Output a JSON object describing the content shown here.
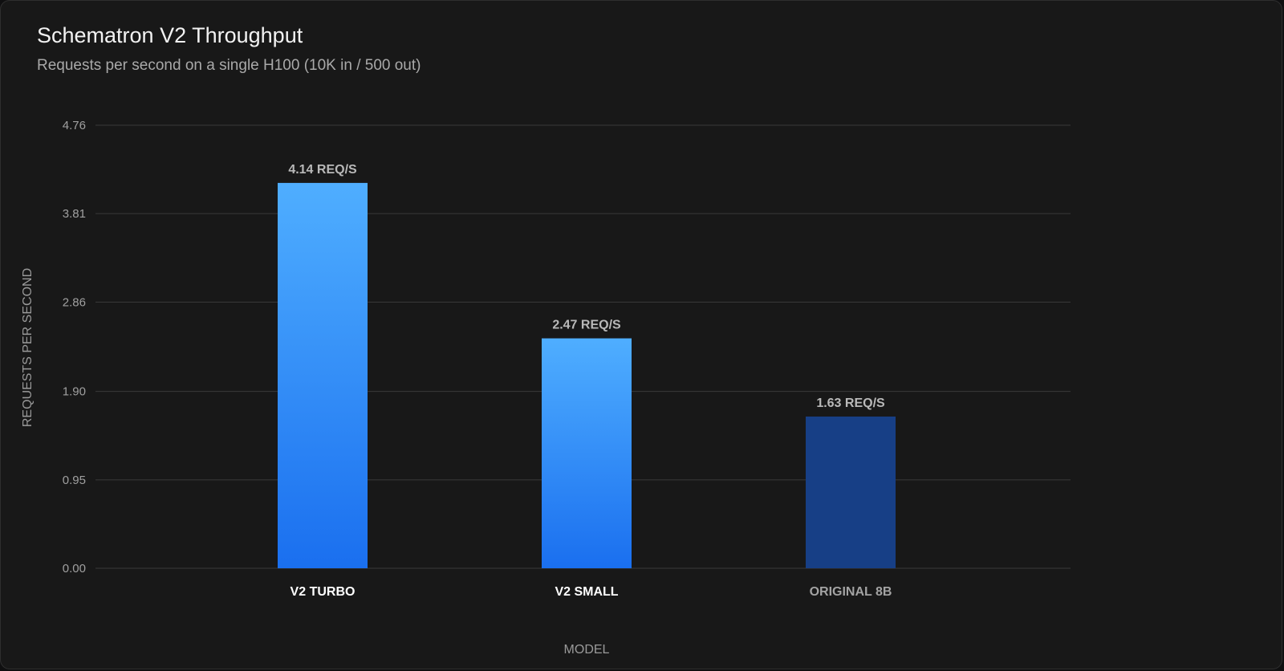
{
  "title": "Schematron V2 Throughput",
  "subtitle": "Requests per second on a single H100 (10K in / 500 out)",
  "chart_data": {
    "type": "bar",
    "title": "Schematron V2 Throughput",
    "subtitle": "Requests per second on a single H100 (10K in / 500 out)",
    "xlabel": "MODEL",
    "ylabel": "REQUESTS PER SECOND",
    "categories": [
      "V2 TURBO",
      "V2 SMALL",
      "ORIGINAL 8B"
    ],
    "values": [
      4.14,
      2.47,
      1.63
    ],
    "data_labels": [
      "4.14 REQ/S",
      "2.47 REQ/S",
      "1.63 REQ/S"
    ],
    "yticks": [
      "0.00",
      "0.95",
      "1.90",
      "2.86",
      "3.81",
      "4.76"
    ],
    "ylim": [
      0,
      4.76
    ],
    "grid": true,
    "legend": "none",
    "colors": {
      "bar_gradient_top": "#4faeff",
      "bar_gradient_bottom": "#1a6fef",
      "bar_dim": "#173f86",
      "grid": "#3a3a3a",
      "category_active": "#ffffff",
      "category_dim": "#a3a3a3"
    },
    "highlight": [
      true,
      true,
      false
    ]
  }
}
